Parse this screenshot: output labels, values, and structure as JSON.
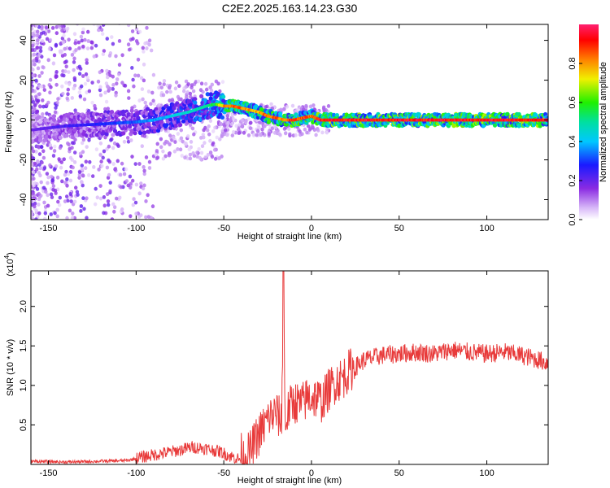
{
  "title": "C2E2.2025.163.14.23.G30",
  "chart_data": [
    {
      "type": "heatmap",
      "xlabel": "Height of straight line (km)",
      "ylabel": "Frequency (Hz)",
      "xlim": [
        -160,
        135
      ],
      "ylim": [
        -50,
        48
      ],
      "xticks": [
        -150,
        -100,
        -50,
        0,
        50,
        100
      ],
      "yticks": [
        -40,
        -20,
        0,
        20,
        40
      ],
      "colorbar": {
        "label": "Normalized spectral amplitude",
        "range": [
          0.0,
          1.0
        ],
        "ticks": [
          0.0,
          0.2,
          0.4,
          0.6,
          0.8
        ],
        "colormap": "rainbow (white-violet-blue-cyan-green-yellow-red-magenta)"
      },
      "ridge": {
        "description": "dominant frequency ridge",
        "x": [
          -160,
          -140,
          -120,
          -100,
          -90,
          -80,
          -70,
          -60,
          -55,
          -50,
          -45,
          -40,
          -35,
          -30,
          -25,
          -20,
          -15,
          -10,
          -5,
          0,
          5,
          20,
          50,
          100,
          135
        ],
        "y": [
          -5,
          -3,
          -2,
          -1,
          0,
          2,
          4,
          7,
          8,
          7,
          7,
          6,
          5,
          4,
          2,
          1,
          0,
          0,
          1,
          2,
          0,
          0,
          0,
          0,
          0
        ],
        "amplitude": [
          0.2,
          0.25,
          0.3,
          0.35,
          0.4,
          0.45,
          0.5,
          0.55,
          0.6,
          0.85,
          0.9,
          0.9,
          0.85,
          0.85,
          0.9,
          0.9,
          0.9,
          0.95,
          0.95,
          0.9,
          1.0,
          1.0,
          1.0,
          1.0,
          1.0
        ]
      }
    },
    {
      "type": "line",
      "xlabel": "Height of straight line (km)",
      "ylabel": "SNR (10 * v/v)",
      "ylabel_multiplier": "(x10^4)",
      "multiplier_base": "(x10",
      "multiplier_exp": "4",
      "multiplier_close": ")",
      "xlim": [
        -160,
        135
      ],
      "ylim": [
        0,
        2.45
      ],
      "xticks": [
        -150,
        -100,
        -50,
        0,
        50,
        100
      ],
      "yticks": [
        0.5,
        1.0,
        1.5,
        2.0
      ],
      "ytick_labels": [
        "0.5",
        "1.0",
        "1.5",
        "2.0"
      ],
      "color": "#e83a3a",
      "series": [
        {
          "x": [
            -160,
            -140,
            -120,
            -105,
            -95,
            -85,
            -75,
            -68,
            -60,
            -52,
            -46,
            -40,
            -35,
            -32,
            -28,
            -24,
            -20,
            -17,
            -16,
            -15,
            -13,
            -10,
            -6,
            -2,
            2,
            6,
            10,
            14,
            18,
            22,
            26,
            30,
            40,
            50,
            60,
            70,
            80,
            90,
            100,
            110,
            120,
            130,
            135
          ],
          "y": [
            0.04,
            0.03,
            0.04,
            0.05,
            0.1,
            0.14,
            0.18,
            0.22,
            0.2,
            0.16,
            0.1,
            0.06,
            0.15,
            0.3,
            0.45,
            0.6,
            0.65,
            0.55,
            2.45,
            0.5,
            0.7,
            0.8,
            0.75,
            0.85,
            0.85,
            0.8,
            0.95,
            1.05,
            1.1,
            1.2,
            1.25,
            1.32,
            1.38,
            1.4,
            1.42,
            1.4,
            1.45,
            1.42,
            1.4,
            1.42,
            1.38,
            1.32,
            1.28
          ]
        }
      ]
    }
  ]
}
